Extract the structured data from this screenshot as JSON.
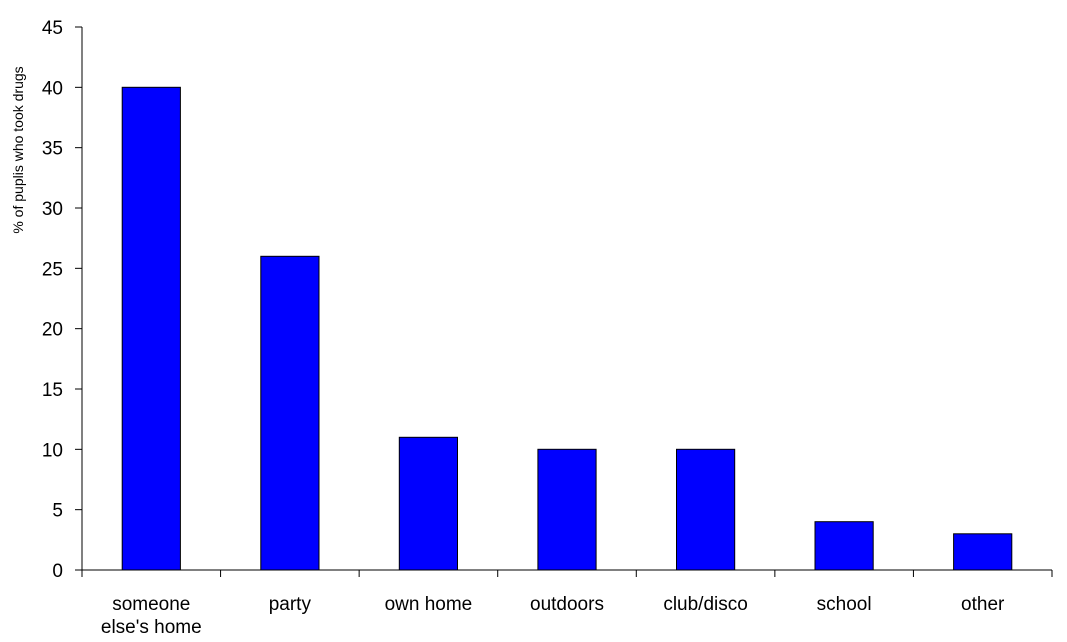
{
  "chart_data": {
    "type": "bar",
    "title": "",
    "xlabel": "",
    "ylabel": "% of puplis who took drugs",
    "ylim": [
      0,
      45
    ],
    "yticks": [
      0,
      5,
      10,
      15,
      20,
      25,
      30,
      35,
      40,
      45
    ],
    "grid": false,
    "legend": "none",
    "bar_color": "#0000ff",
    "categories": [
      [
        "someone",
        "else's home"
      ],
      [
        "party"
      ],
      [
        "own home"
      ],
      [
        "outdoors"
      ],
      [
        "club/disco"
      ],
      [
        "school"
      ],
      [
        "other"
      ]
    ],
    "values": [
      40,
      26,
      11,
      10,
      10,
      4,
      3
    ]
  }
}
